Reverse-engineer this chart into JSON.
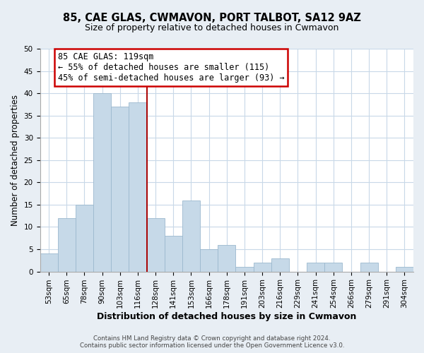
{
  "title": "85, CAE GLAS, CWMAVON, PORT TALBOT, SA12 9AZ",
  "subtitle": "Size of property relative to detached houses in Cwmavon",
  "xlabel": "Distribution of detached houses by size in Cwmavon",
  "ylabel": "Number of detached properties",
  "bar_labels": [
    "53sqm",
    "65sqm",
    "78sqm",
    "90sqm",
    "103sqm",
    "116sqm",
    "128sqm",
    "141sqm",
    "153sqm",
    "166sqm",
    "178sqm",
    "191sqm",
    "203sqm",
    "216sqm",
    "229sqm",
    "241sqm",
    "254sqm",
    "266sqm",
    "279sqm",
    "291sqm",
    "304sqm"
  ],
  "bar_values": [
    4,
    12,
    15,
    40,
    37,
    38,
    12,
    8,
    16,
    5,
    6,
    1,
    2,
    3,
    0,
    2,
    2,
    0,
    2,
    0,
    1
  ],
  "bar_color": "#c6d9e8",
  "bar_edge_color": "#9bb8ce",
  "annotation_line1": "85 CAE GLAS: 119sqm",
  "annotation_line2": "← 55% of detached houses are smaller (115)",
  "annotation_line3": "45% of semi-detached houses are larger (93) →",
  "vline_x_index": 5.5,
  "vline_color": "#aa0000",
  "ylim": [
    0,
    50
  ],
  "yticks": [
    0,
    5,
    10,
    15,
    20,
    25,
    30,
    35,
    40,
    45,
    50
  ],
  "footer_line1": "Contains HM Land Registry data © Crown copyright and database right 2024.",
  "footer_line2": "Contains public sector information licensed under the Open Government Licence v3.0.",
  "bg_color": "#e8eef4",
  "plot_bg_color": "#ffffff",
  "grid_color": "#c8d8e8",
  "title_fontsize": 10.5,
  "subtitle_fontsize": 9.0,
  "xlabel_fontsize": 9.0,
  "ylabel_fontsize": 8.5,
  "tick_fontsize": 7.5,
  "footer_fontsize": 6.2,
  "annot_fontsize": 8.5
}
